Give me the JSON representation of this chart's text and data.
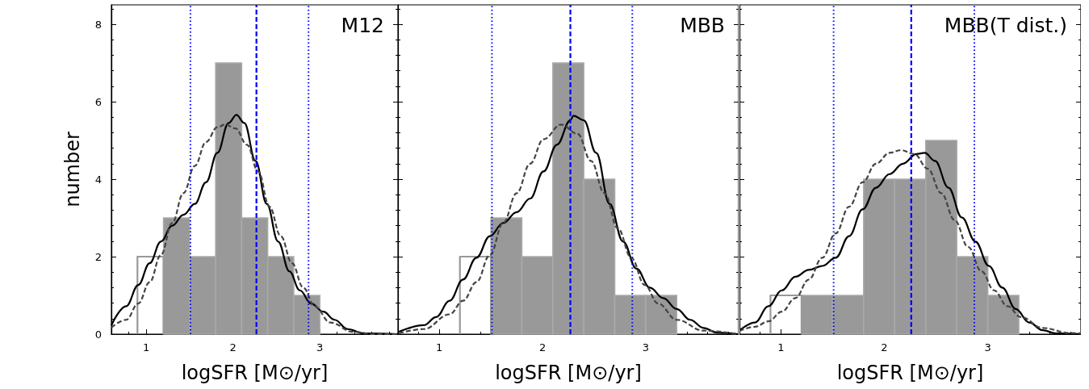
{
  "chart_data": [
    {
      "type": "histogram",
      "title": "M12",
      "xlabel": "logSFR [M⊙/yr]",
      "ylabel": "number",
      "bins": [
        1.2,
        1.5,
        1.8,
        2.1,
        2.4,
        2.7,
        3.0
      ],
      "xlim": [
        0.6,
        3.9
      ],
      "ylim": [
        0,
        8.5
      ],
      "xticks": [
        1,
        2,
        3
      ],
      "yticks": [
        0,
        2,
        4,
        6,
        8
      ],
      "grid": false,
      "series": [
        {
          "color": "#999999",
          "values": [
            3,
            2,
            7,
            3,
            2,
            1
          ]
        },
        {
          "type": "line",
          "color": "#999999",
          "x": [
            0.9,
            0.9,
            1.2,
            1.2
          ],
          "values": [
            0,
            2,
            2,
            0
          ]
        },
        {
          "type": "line",
          "color": "#000000",
          "x": [
            0.6,
            0.77,
            0.91,
            1.04,
            1.17,
            1.3,
            1.43,
            1.56,
            1.69,
            1.82,
            1.95,
            2.04,
            2.13,
            2.26,
            2.39,
            2.52,
            2.65,
            2.77,
            2.9,
            3.04,
            3.17,
            3.32,
            3.51,
            3.9
          ],
          "values": [
            0.23,
            0.72,
            1.27,
            1.83,
            2.39,
            2.8,
            3.08,
            3.36,
            3.92,
            4.68,
            5.45,
            5.66,
            5.45,
            4.47,
            3.36,
            2.39,
            1.62,
            1.13,
            0.79,
            0.58,
            0.37,
            0.13,
            0.02,
            0
          ]
        },
        {
          "type": "line",
          "color": "#444444",
          "line_style": "dashed",
          "x": [
            0.6,
            0.77,
            0.91,
            1.04,
            1.17,
            1.3,
            1.43,
            1.56,
            1.69,
            1.82,
            1.91,
            2.03,
            2.16,
            2.29,
            2.42,
            2.55,
            2.68,
            2.81,
            2.94,
            3.12,
            3.38,
            3.64,
            3.9
          ],
          "values": [
            0.17,
            0.37,
            0.79,
            1.34,
            2.04,
            2.87,
            3.64,
            4.34,
            4.96,
            5.34,
            5.41,
            5.31,
            4.89,
            4.2,
            3.29,
            2.53,
            1.83,
            1.2,
            0.72,
            0.3,
            0.06,
            0,
            0
          ]
        }
      ],
      "ref_lines": [
        {
          "axis": "x",
          "value": 1.51,
          "color": "#0000ff",
          "line_style": "dotted"
        },
        {
          "axis": "x",
          "value": 2.27,
          "color": "#0000ff",
          "line_style": "dashed"
        },
        {
          "axis": "x",
          "value": 2.87,
          "color": "#0000ff",
          "line_style": "dotted"
        }
      ]
    },
    {
      "type": "histogram",
      "title": "MBB",
      "xlabel": "logSFR [M⊙/yr]",
      "bins": [
        1.5,
        1.8,
        2.1,
        2.4,
        2.7,
        3.0,
        3.3
      ],
      "xlim": [
        0.6,
        3.9
      ],
      "ylim": [
        0,
        8.5
      ],
      "xticks": [
        1,
        2,
        3
      ],
      "yticks": [
        0,
        2,
        4,
        6,
        8
      ],
      "grid": false,
      "tick_labels": "x",
      "series": [
        {
          "color": "#999999",
          "values": [
            3,
            2,
            7,
            4,
            1,
            1
          ]
        },
        {
          "type": "line",
          "color": "#999999",
          "x": [
            1.2,
            1.2,
            1.5,
            1.5
          ],
          "values": [
            0,
            2,
            2,
            0
          ]
        },
        {
          "type": "line",
          "color": "#000000",
          "x": [
            0.61,
            0.85,
            0.97,
            1.1,
            1.23,
            1.36,
            1.49,
            1.62,
            1.75,
            1.88,
            2.01,
            2.14,
            2.27,
            2.3,
            2.4,
            2.52,
            2.65,
            2.78,
            2.91,
            3.04,
            3.17,
            3.3,
            3.43,
            3.56,
            3.69,
            3.89
          ],
          "values": [
            0.06,
            0.23,
            0.44,
            0.86,
            1.41,
            1.97,
            2.53,
            2.87,
            3.15,
            3.5,
            4.2,
            4.89,
            5.52,
            5.64,
            5.52,
            4.68,
            3.36,
            2.39,
            1.69,
            1.2,
            0.93,
            0.65,
            0.37,
            0.16,
            0.04,
            0
          ]
        },
        {
          "type": "line",
          "color": "#444444",
          "line_style": "dashed",
          "x": [
            0.61,
            0.85,
            1.1,
            1.23,
            1.36,
            1.49,
            1.62,
            1.75,
            1.88,
            2.01,
            2.18,
            2.34,
            2.47,
            2.6,
            2.73,
            2.86,
            2.99,
            3.12,
            3.3,
            3.56,
            3.89
          ],
          "values": [
            0.02,
            0.13,
            0.51,
            0.86,
            1.34,
            2.04,
            2.87,
            3.64,
            4.4,
            5.03,
            5.41,
            5.17,
            4.47,
            3.64,
            2.73,
            1.97,
            1.27,
            0.79,
            0.37,
            0.09,
            0
          ]
        }
      ],
      "ref_lines": [
        {
          "axis": "x",
          "value": 1.51,
          "color": "#0000ff",
          "line_style": "dotted"
        },
        {
          "axis": "x",
          "value": 2.27,
          "color": "#0000ff",
          "line_style": "dashed"
        },
        {
          "axis": "x",
          "value": 2.87,
          "color": "#0000ff",
          "line_style": "dotted"
        }
      ]
    },
    {
      "type": "histogram",
      "title": "MBB(T dist.)",
      "xlabel": "logSFR [M⊙/yr]",
      "bins": [
        1.2,
        1.5,
        1.8,
        2.1,
        2.4,
        2.7,
        3.0,
        3.3
      ],
      "xlim": [
        0.6,
        3.9
      ],
      "ylim": [
        0,
        8.5
      ],
      "xticks": [
        1,
        2,
        3
      ],
      "yticks": [
        0,
        2,
        4,
        6,
        8
      ],
      "grid": false,
      "tick_labels": "x",
      "series": [
        {
          "color": "#999999",
          "values": [
            1,
            1,
            4,
            4,
            5,
            2,
            1
          ]
        },
        {
          "type": "line",
          "color": "#999999",
          "x": [
            0.9,
            0.9,
            1.2,
            1.2
          ],
          "values": [
            0,
            1,
            1,
            0
          ]
        },
        {
          "type": "line",
          "color": "#000000",
          "x": [
            0.6,
            0.75,
            0.88,
            1.01,
            1.14,
            1.27,
            1.4,
            1.53,
            1.66,
            1.79,
            1.92,
            2.05,
            2.18,
            2.31,
            2.39,
            2.49,
            2.62,
            2.75,
            2.88,
            3.01,
            3.14,
            3.27,
            3.4,
            3.53,
            3.66,
            3.9
          ],
          "values": [
            0.09,
            0.3,
            0.72,
            1.13,
            1.48,
            1.66,
            1.76,
            1.97,
            2.53,
            3.22,
            3.78,
            4.13,
            4.4,
            4.65,
            4.68,
            4.47,
            3.78,
            3.01,
            2.39,
            1.76,
            1.2,
            0.65,
            0.3,
            0.1,
            0.02,
            0
          ]
        },
        {
          "type": "line",
          "color": "#444444",
          "line_style": "dashed",
          "x": [
            0.6,
            0.75,
            0.88,
            1.01,
            1.14,
            1.27,
            1.4,
            1.53,
            1.66,
            1.79,
            1.92,
            2.05,
            2.16,
            2.29,
            2.42,
            2.55,
            2.68,
            2.81,
            2.94,
            3.06,
            3.19,
            3.32,
            3.53,
            3.79,
            3.9
          ],
          "values": [
            0.08,
            0.19,
            0.33,
            0.58,
            0.93,
            1.41,
            1.97,
            2.6,
            3.29,
            3.92,
            4.4,
            4.68,
            4.75,
            4.65,
            4.27,
            3.64,
            2.94,
            2.25,
            1.62,
            1.13,
            0.72,
            0.44,
            0.16,
            0.03,
            0.02
          ]
        }
      ],
      "ref_lines": [
        {
          "axis": "x",
          "value": 1.51,
          "color": "#0000ff",
          "line_style": "dotted"
        },
        {
          "axis": "x",
          "value": 2.26,
          "color": "#0000ff",
          "line_style": "dashed"
        },
        {
          "axis": "x",
          "value": 2.87,
          "color": "#0000ff",
          "line_style": "dotted"
        }
      ]
    }
  ]
}
